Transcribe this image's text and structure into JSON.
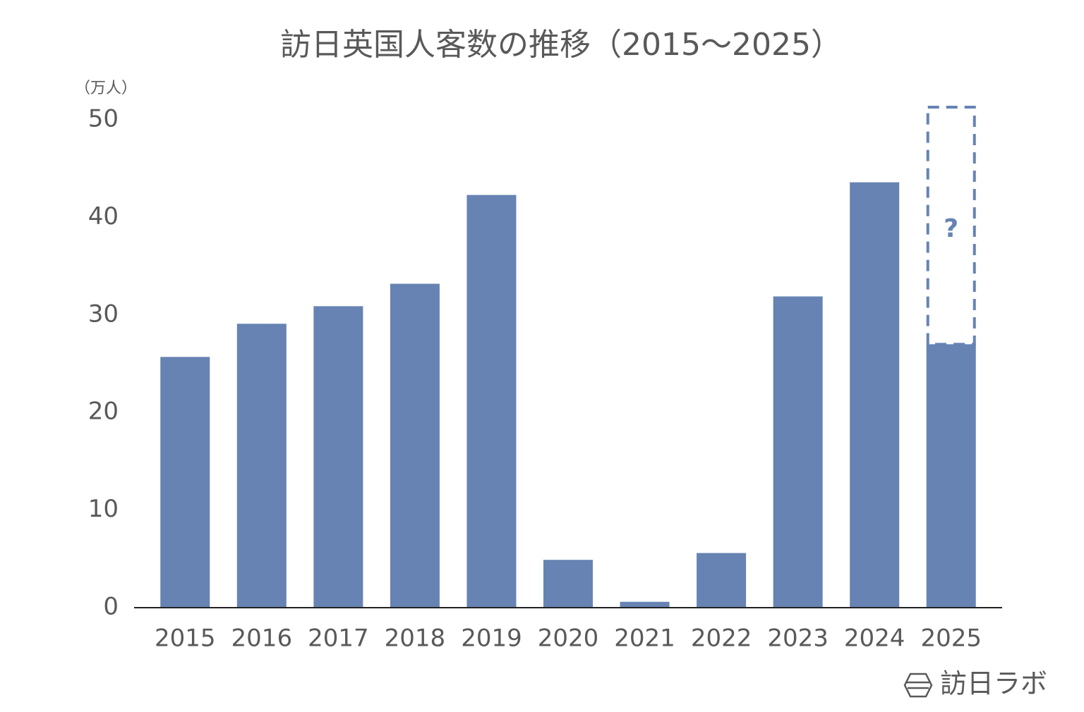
{
  "chart_data": {
    "type": "bar",
    "title": "訪日英国人客数の推移（2015〜2025）",
    "y_unit": "（万人）",
    "categories": [
      "2015",
      "2016",
      "2017",
      "2018",
      "2019",
      "2020",
      "2021",
      "2022",
      "2023",
      "2024",
      "2025"
    ],
    "values": [
      25.7,
      29.1,
      30.9,
      33.2,
      42.3,
      4.9,
      0.6,
      5.6,
      31.9,
      43.6,
      27.0
    ],
    "color": "#6683b3",
    "ylim": [
      0,
      50
    ],
    "yticks": [
      0,
      10,
      20,
      30,
      40,
      50
    ],
    "grid": false,
    "annotation": "?",
    "source": "訪日ラボ"
  }
}
